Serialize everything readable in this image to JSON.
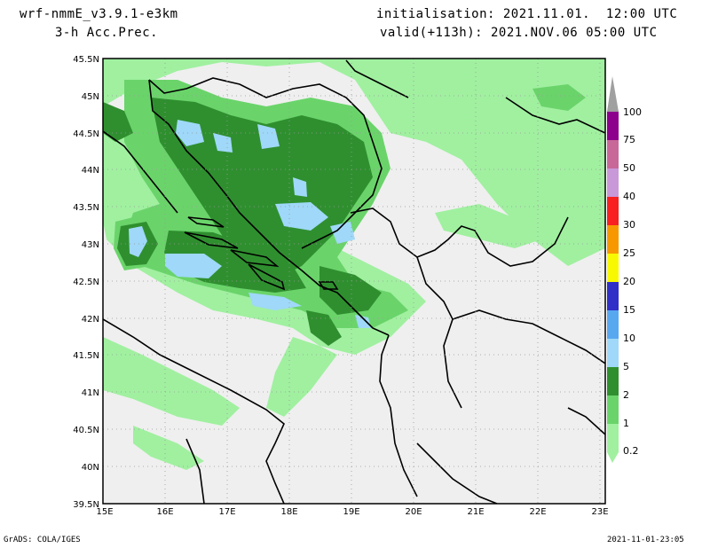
{
  "header": {
    "model": "wrf-nmmE_v3.9.1-e3km",
    "field": "3-h Acc.Prec.",
    "init": "initialisation: 2021.11.01.  12:00 UTC",
    "valid": "valid(+113h): 2021.NOV.06 05:00 UTC"
  },
  "axes": {
    "lat_labels": [
      "45.5N",
      "45N",
      "44.5N",
      "44N",
      "43.5N",
      "43N",
      "42.5N",
      "42N",
      "41.5N",
      "41N",
      "40.5N",
      "40N",
      "39.5N"
    ],
    "lon_labels": [
      "15E",
      "16E",
      "17E",
      "18E",
      "19E",
      "20E",
      "21E",
      "22E",
      "23E"
    ]
  },
  "legend": {
    "levels": [
      "0.2",
      "1",
      "2",
      "5",
      "10",
      "15",
      "20",
      "25",
      "30",
      "40",
      "50",
      "75",
      "100"
    ],
    "colors": [
      "#a0f0a0",
      "#6ad46a",
      "#2f8f2f",
      "#9fd8f8",
      "#58a8f0",
      "#3030c8",
      "#f8f800",
      "#f89800",
      "#f82020",
      "#c898d8",
      "#c86898",
      "#8c008c",
      "#a0a0a0"
    ]
  },
  "footer": {
    "left": "GrADS: COLA/IGES",
    "right": "2021-11-01-23:05"
  }
}
